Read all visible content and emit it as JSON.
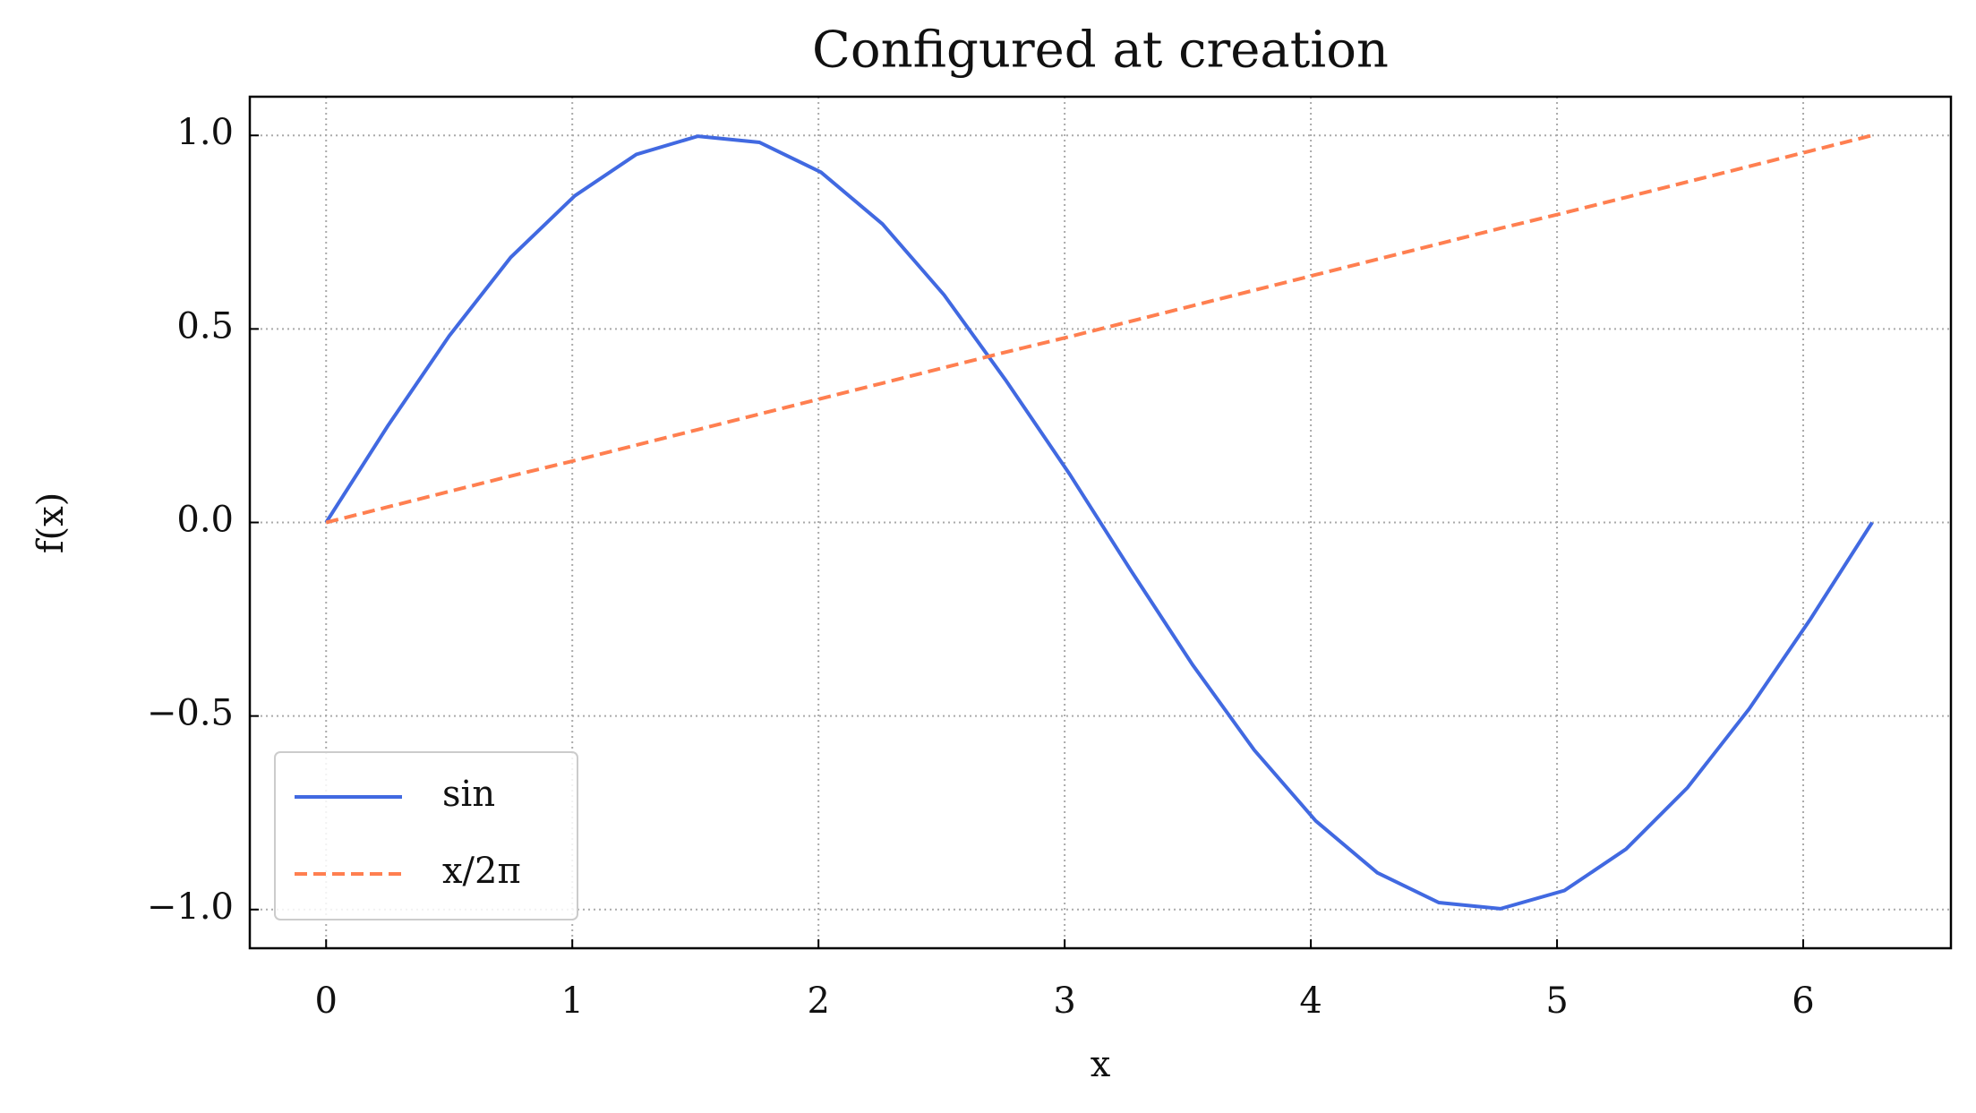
{
  "chart_data": {
    "type": "line",
    "title": "Configured at creation",
    "xlabel": "x",
    "ylabel": "f(x)",
    "x": [
      0,
      0.25,
      0.5,
      0.75,
      1.01,
      1.26,
      1.51,
      1.76,
      2.01,
      2.26,
      2.51,
      2.76,
      3.02,
      3.27,
      3.52,
      3.77,
      4.02,
      4.27,
      4.52,
      4.77,
      5.03,
      5.28,
      5.53,
      5.78,
      6.03,
      6.28
    ],
    "series": [
      {
        "name": "sin",
        "color": "#4169e1",
        "linestyle": "solid",
        "values": [
          0,
          0.249,
          0.482,
          0.685,
          0.844,
          0.951,
          0.998,
          0.982,
          0.905,
          0.771,
          0.588,
          0.368,
          0.125,
          -0.125,
          -0.368,
          -0.588,
          -0.771,
          -0.905,
          -0.982,
          -0.998,
          -0.951,
          -0.844,
          -0.685,
          -0.482,
          -0.249,
          0
        ]
      },
      {
        "name": "x/2π",
        "color": "#ff7f50",
        "linestyle": "dashed",
        "values": [
          0,
          0.04,
          0.08,
          0.12,
          0.16,
          0.2,
          0.24,
          0.28,
          0.32,
          0.36,
          0.4,
          0.44,
          0.48,
          0.52,
          0.56,
          0.6,
          0.64,
          0.68,
          0.72,
          0.76,
          0.8,
          0.84,
          0.88,
          0.92,
          0.96,
          1.0
        ]
      }
    ],
    "xlim": [
      -0.31,
      6.6
    ],
    "ylim": [
      -1.1,
      1.1
    ],
    "xticks": [
      0,
      1,
      2,
      3,
      4,
      5,
      6
    ],
    "yticks": [
      {
        "value": -1,
        "label": "−1.0"
      },
      {
        "value": -0.5,
        "label": "−0.5"
      },
      {
        "value": 0,
        "label": "0.0"
      },
      {
        "value": 0.5,
        "label": "0.5"
      },
      {
        "value": 1,
        "label": "1.0"
      }
    ],
    "grid": true,
    "legend": "lower left"
  }
}
